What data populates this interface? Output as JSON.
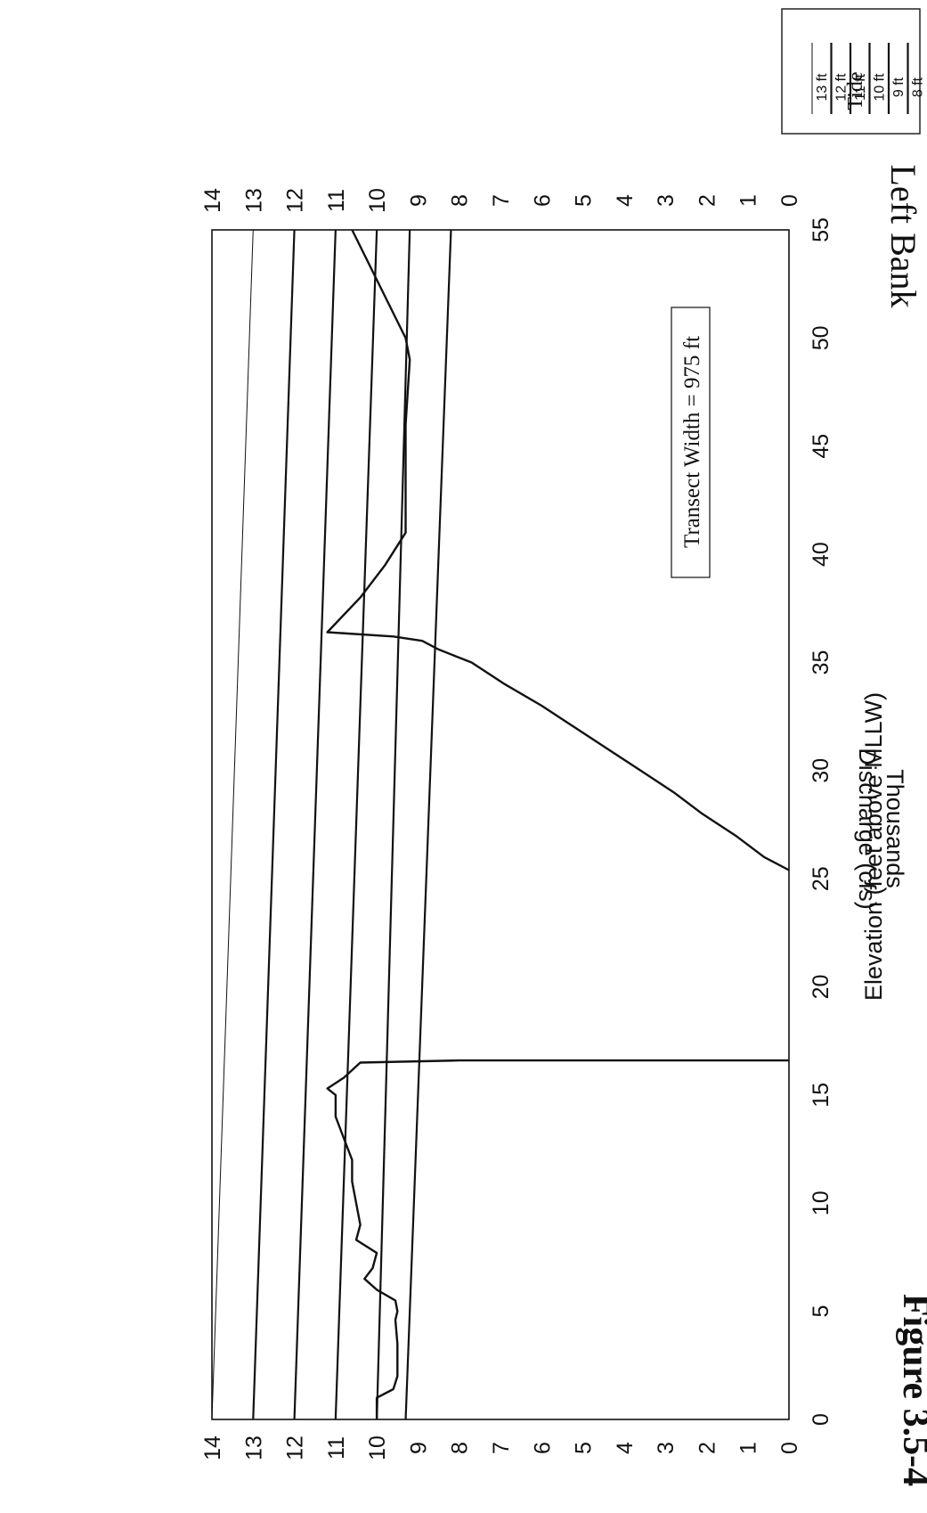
{
  "figure_caption": "Figure 3.5-4",
  "bank_label": "Left Bank",
  "annotation": "Transect Width = 975 ft",
  "legend": {
    "title": "Tide",
    "entries": [
      "13 ft",
      "12 ft",
      "11 ft",
      "10 ft",
      "9 ft",
      "8 ft"
    ]
  },
  "chart_data": {
    "type": "line",
    "xlabel": "Discharge (cfs)",
    "xlabel_unit": "Thousands",
    "ylabel": "Elevation (feet above MLLW)",
    "xlim": [
      0,
      55
    ],
    "ylim": [
      0,
      14
    ],
    "x_ticks": [
      0,
      5,
      10,
      15,
      20,
      25,
      30,
      35,
      40,
      45,
      50,
      55
    ],
    "y_ticks": [
      0,
      1,
      2,
      3,
      4,
      5,
      6,
      7,
      8,
      9,
      10,
      11,
      12,
      13,
      14
    ],
    "grid": false,
    "tide_levels": [
      {
        "name": "13 ft",
        "y_start": 13.0,
        "y_end": 14.0
      },
      {
        "name": "12 ft",
        "y_start": 12.0,
        "y_end": 13.0
      },
      {
        "name": "11 ft",
        "y_start": 11.0,
        "y_end": 12.0
      },
      {
        "name": "10 ft",
        "y_start": 10.0,
        "y_end": 11.0
      },
      {
        "name": "9 ft",
        "y_start": 9.2,
        "y_end": 10.0
      },
      {
        "name": "8 ft",
        "y_start": 8.2,
        "y_end": 9.3
      }
    ],
    "series": [
      {
        "points": [
          [
            0,
            10.0
          ],
          [
            1.0,
            10.0
          ],
          [
            1.4,
            9.6
          ],
          [
            2.0,
            9.5
          ],
          [
            2.5,
            9.5
          ],
          [
            3.5,
            9.5
          ],
          [
            4.6,
            9.55
          ],
          [
            5.0,
            9.5
          ],
          [
            5.5,
            9.55
          ],
          [
            6.0,
            10.0
          ],
          [
            6.5,
            10.3
          ],
          [
            7.0,
            10.1
          ],
          [
            7.7,
            10.0
          ],
          [
            8.3,
            10.5
          ],
          [
            9.0,
            10.4
          ],
          [
            10.0,
            10.5
          ],
          [
            11.0,
            10.6
          ],
          [
            12.0,
            10.6
          ],
          [
            13.0,
            10.8
          ],
          [
            14.0,
            11.0
          ],
          [
            15.0,
            11.0
          ],
          [
            15.3,
            11.2
          ],
          [
            15.8,
            10.8
          ],
          [
            16.5,
            10.4
          ],
          [
            16.6,
            8.0
          ],
          [
            16.6,
            0
          ]
        ]
      },
      {
        "points": [
          [
            25.4,
            0
          ],
          [
            26.0,
            0.6
          ],
          [
            27.0,
            1.3
          ],
          [
            28.0,
            2.1
          ],
          [
            29.0,
            2.8
          ],
          [
            30.0,
            3.6
          ],
          [
            31.0,
            4.4
          ],
          [
            32.0,
            5.2
          ],
          [
            33.0,
            6.0
          ],
          [
            34.0,
            6.9
          ],
          [
            35.0,
            7.7
          ],
          [
            35.3,
            8.1
          ],
          [
            35.6,
            8.5
          ],
          [
            36.0,
            8.9
          ],
          [
            36.2,
            9.6
          ],
          [
            36.4,
            11.2
          ],
          [
            38.0,
            10.4
          ],
          [
            39.5,
            9.8
          ],
          [
            41.0,
            9.3
          ],
          [
            42.0,
            9.3
          ],
          [
            46.0,
            9.3
          ],
          [
            49.0,
            9.2
          ],
          [
            50.0,
            9.3
          ],
          [
            55.0,
            10.6
          ]
        ]
      }
    ]
  }
}
